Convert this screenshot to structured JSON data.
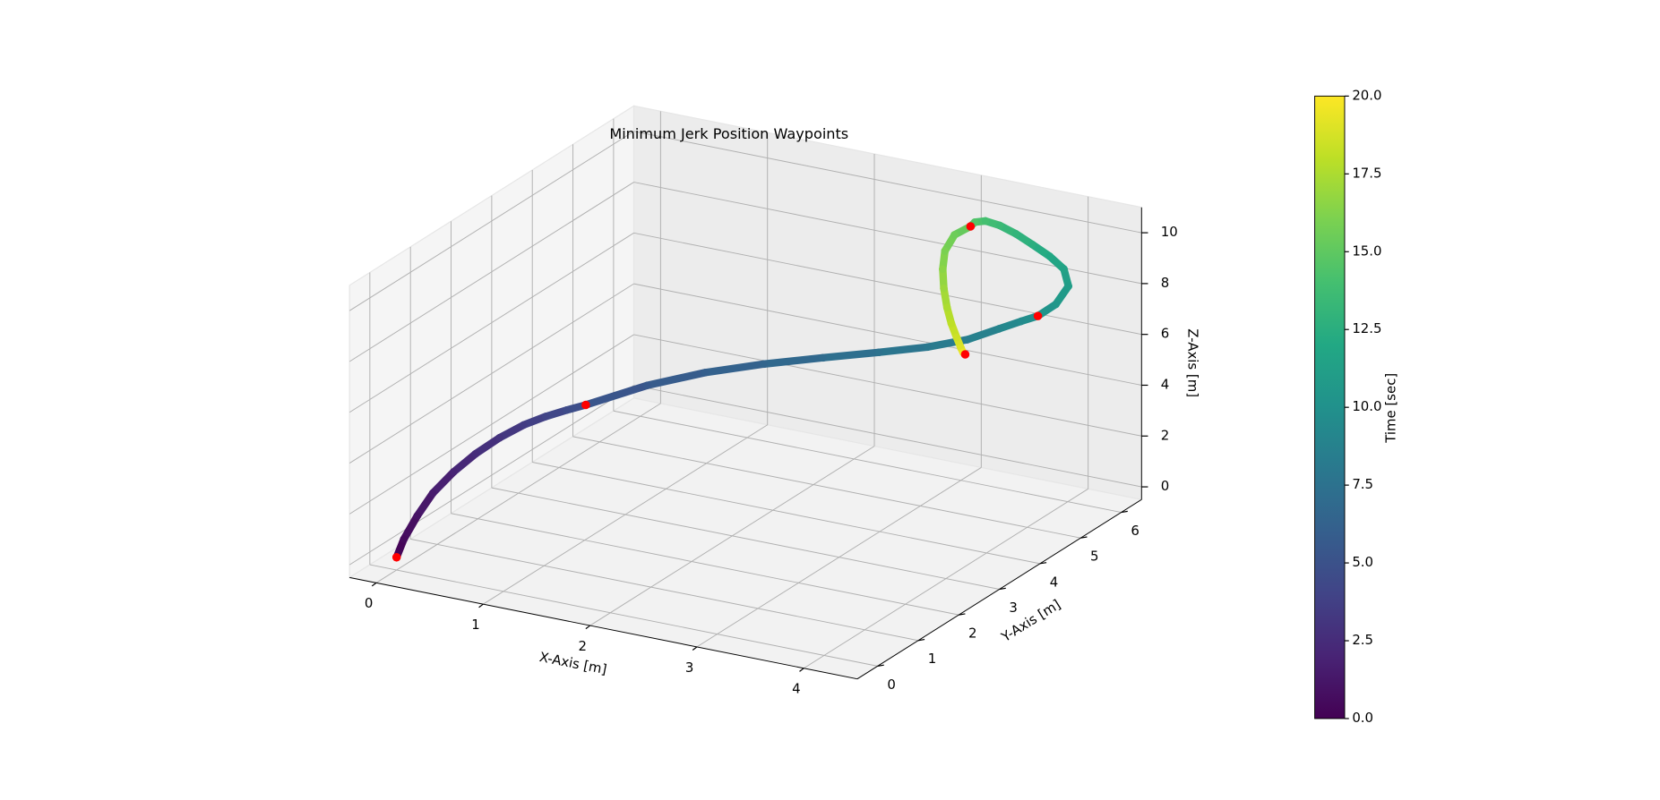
{
  "chart_data": {
    "type": "scatter3d",
    "title": "Minimum Jerk Position Waypoints",
    "xlabel": "X-Axis [m]",
    "ylabel": "Y-Axis [m]",
    "zlabel": "Z-Axis [m]",
    "xlim": [
      -0.25,
      4.5
    ],
    "ylim": [
      -0.5,
      6.5
    ],
    "zlim": [
      -0.5,
      11
    ],
    "xticks": [
      0,
      1,
      2,
      3,
      4
    ],
    "yticks": [
      0,
      1,
      2,
      3,
      4,
      5,
      6
    ],
    "zticks": [
      0,
      2,
      4,
      6,
      8,
      10
    ],
    "grid": true,
    "trajectory": {
      "t": [
        0,
        0.5,
        1,
        1.5,
        2,
        2.5,
        3,
        3.5,
        4,
        4.5,
        5,
        5.5,
        6,
        6.5,
        7,
        7.5,
        8,
        8.5,
        9,
        9.5,
        10,
        10.5,
        11,
        11.5,
        12,
        12.5,
        13,
        13.5,
        14,
        14.5,
        15,
        15.5,
        16,
        16.5,
        17,
        17.5,
        18,
        18.5,
        19,
        19.5,
        20
      ],
      "x": [
        0,
        0.03,
        0.08,
        0.13,
        0.23,
        0.34,
        0.47,
        0.6,
        0.73,
        0.87,
        1.01,
        1.47,
        1.86,
        2.26,
        2.66,
        3.03,
        3.37,
        3.63,
        3.85,
        4.0,
        4.1,
        4.23,
        4.31,
        4.21,
        4.02,
        3.8,
        3.59,
        3.4,
        3.23,
        3.13,
        3.09,
        2.94,
        2.85,
        2.83,
        2.84,
        2.87,
        2.91,
        2.96,
        3.0,
        3.02,
        3.04
      ],
      "y": [
        0,
        0.1,
        0.3,
        0.55,
        0.8,
        1.05,
        1.3,
        1.55,
        1.75,
        1.9,
        2,
        2.3,
        2.7,
        3.1,
        3.5,
        3.9,
        4.2,
        4.5,
        4.7,
        4.85,
        5,
        5.1,
        5.2,
        5.35,
        5.5,
        5.65,
        5.8,
        5.9,
        6,
        6,
        6,
        6,
        6,
        6,
        6,
        6,
        6,
        6,
        6,
        6,
        6
      ],
      "z": [
        0,
        0.64,
        1.4,
        2.08,
        2.75,
        3.3,
        3.79,
        4.15,
        4.39,
        4.61,
        4.83,
        5.68,
        6.11,
        6.38,
        6.56,
        6.68,
        6.87,
        7.08,
        7.49,
        7.76,
        7.9,
        8.37,
        9.05,
        9.49,
        9.68,
        9.81,
        9.9,
        9.97,
        9.9,
        9.77,
        9.57,
        9.11,
        8.4,
        7.67,
        6.92,
        6.19,
        5.6,
        5.09,
        4.71,
        4.55,
        4.49
      ]
    },
    "colormap": [
      "#440154",
      "#482475",
      "#414487",
      "#355f8d",
      "#2a788e",
      "#21918c",
      "#22a884",
      "#44bf70",
      "#7ad151",
      "#bddf26",
      "#fde725"
    ],
    "waypoints": {
      "x": [
        0,
        1.01,
        4.1,
        3.09,
        3.04
      ],
      "y": [
        0,
        2,
        5,
        6,
        6
      ],
      "z": [
        0,
        4.83,
        7.9,
        9.57,
        4.49
      ],
      "color": "#ff0000"
    },
    "colorbar": {
      "label": "Time [sec]",
      "lim": [
        0,
        20
      ],
      "ticks": [
        {
          "value": 0,
          "label": "0.0"
        },
        {
          "value": 2.5,
          "label": "2.5"
        },
        {
          "value": 5,
          "label": "5.0"
        },
        {
          "value": 7.5,
          "label": "7.5"
        },
        {
          "value": 10,
          "label": "10.0"
        },
        {
          "value": 12.5,
          "label": "12.5"
        },
        {
          "value": 15,
          "label": "15.0"
        },
        {
          "value": 17.5,
          "label": "17.5"
        },
        {
          "value": 20,
          "label": "20.0"
        }
      ]
    }
  }
}
